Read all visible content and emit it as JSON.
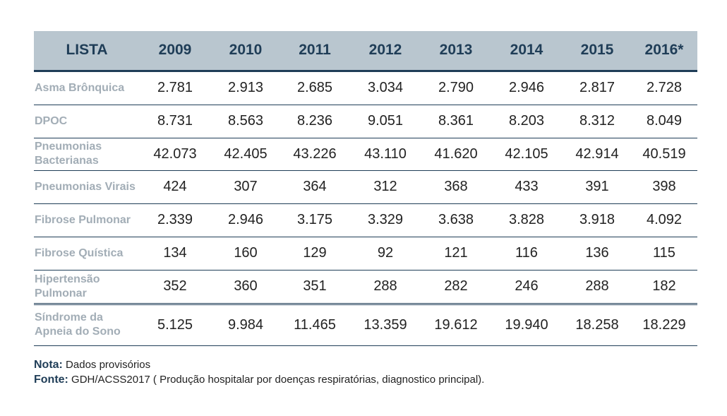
{
  "table": {
    "headers": [
      "LISTA",
      "2009",
      "2010",
      "2011",
      "2012",
      "2013",
      "2014",
      "2015",
      "2016*"
    ],
    "rows": [
      {
        "label": "Asma Brônquica",
        "values": [
          "2.781",
          "2.913",
          "2.685",
          "3.034",
          "2.790",
          "2.946",
          "2.817",
          "2.728"
        ]
      },
      {
        "label": "DPOC",
        "values": [
          "8.731",
          "8.563",
          "8.236",
          "9.051",
          "8.361",
          "8.203",
          "8.312",
          "8.049"
        ]
      },
      {
        "label": "Pneumonias Bacterianas",
        "values": [
          "42.073",
          "42.405",
          "43.226",
          "43.110",
          "41.620",
          "42.105",
          "42.914",
          "40.519"
        ]
      },
      {
        "label": "Pneumonias Virais",
        "values": [
          "424",
          "307",
          "364",
          "312",
          "368",
          "433",
          "391",
          "398"
        ]
      },
      {
        "label": "Fibrose Pulmonar",
        "values": [
          "2.339",
          "2.946",
          "3.175",
          "3.329",
          "3.638",
          "3.828",
          "3.918",
          "4.092"
        ]
      },
      {
        "label": "Fibrose Quística",
        "values": [
          "134",
          "160",
          "129",
          "92",
          "121",
          "116",
          "136",
          "115"
        ]
      },
      {
        "label": "Hipertensão Pulmonar",
        "values": [
          "352",
          "360",
          "351",
          "288",
          "282",
          "246",
          "288",
          "182"
        ]
      },
      {
        "label": "Síndrome da Apneia do Sono",
        "values": [
          "5.125",
          "9.984",
          "11.465",
          "13.359",
          "19.612",
          "19.940",
          "18.258",
          "18.229"
        ]
      }
    ]
  },
  "notes": {
    "nota_label": "Nota:",
    "nota_text": " Dados provisórios",
    "fonte_label": "Fonte:",
    "fonte_text": " GDH/ACSS2017 ( Produção hospitalar por doenças respiratórias, diagnostico principal)."
  }
}
